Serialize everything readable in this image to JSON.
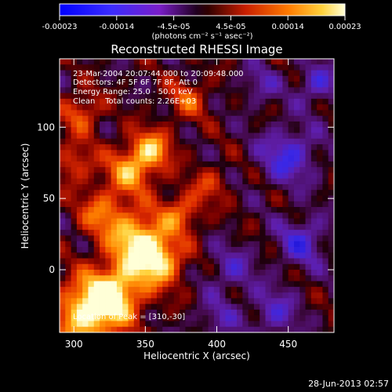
{
  "chart_data": {
    "type": "heatmap",
    "title": "Reconstructed RHESSI Image",
    "xlabel": "Heliocentric X (arcsec)",
    "ylabel": "Heliocentric Y (arcsec)",
    "xlim": [
      290,
      482
    ],
    "ylim": [
      -44,
      148
    ],
    "x_ticks": [
      300,
      350,
      400,
      450
    ],
    "y_ticks": [
      0,
      50,
      100
    ],
    "colorbar": {
      "tick_labels": [
        "-0.00023",
        "-0.00014",
        "-4.5e-05",
        "4.5e-05",
        "0.00014",
        "0.00023"
      ],
      "range": [
        -0.00023,
        0.00023
      ],
      "unit_label": "(photons cm⁻² s⁻¹ asec⁻²)"
    },
    "annotations": {
      "time": "23-Mar-2004 20:07:44.000 to 20:09:48.000",
      "detectors": "Detectors: 4F 5F 6F 7F 8F, Att 0",
      "energy": "Energy Range: 25.0 - 50.0 keV",
      "method": "Clean    Total counts: 2.26E+03",
      "peak": "Location of Peak = [310,-30]"
    },
    "peak": {
      "x": 310,
      "y": -30
    }
  },
  "footer": {
    "date": "28-Jun-2013 02:57"
  },
  "colors": {
    "background": "#000000",
    "frame": "#ffffff"
  }
}
